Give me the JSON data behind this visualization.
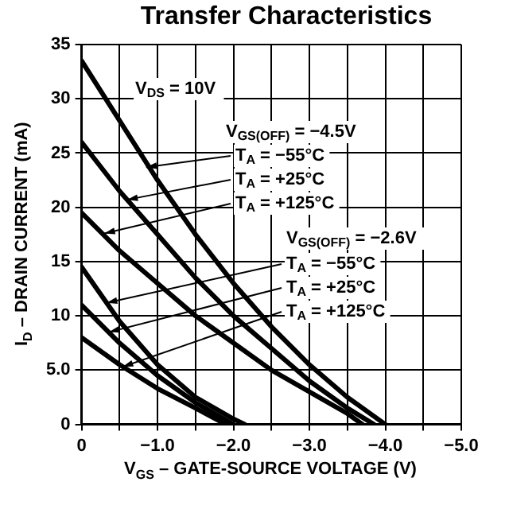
{
  "chart_data": {
    "type": "line",
    "title": "Transfer Characteristics",
    "xlabel": "V$_{GS}$ – GATE-SOURCE VOLTAGE (V)",
    "ylabel": "I$_{D}$ – DRAIN CURRENT (mA)",
    "xlim": [
      0,
      -5
    ],
    "xticks": [
      0,
      {
        "value": -0.5,
        "label": null
      },
      {
        "value": -1,
        "label": "−1.0"
      },
      {
        "value": -1.5,
        "label": null
      },
      {
        "value": -2,
        "label": "−2.0"
      },
      {
        "value": -2.5,
        "label": null
      },
      {
        "value": -3,
        "label": "−3.0"
      },
      {
        "value": -3.5,
        "label": null
      },
      {
        "value": -4,
        "label": "−4.0"
      },
      {
        "value": -4.5,
        "label": null
      },
      {
        "value": -5,
        "label": "−5.0"
      }
    ],
    "ylim": [
      0,
      35
    ],
    "yticks": [
      0,
      {
        "value": 5,
        "label": "5.0"
      },
      10,
      15,
      20,
      25,
      30,
      35
    ],
    "grid": true,
    "legend": false,
    "marker": "none",
    "line_style": "solid",
    "series": [
      {
        "color": "#000000",
        "x": [
          0,
          -0.5,
          -1,
          -1.5,
          -2,
          -2.5,
          -3,
          -3.5,
          -4
        ],
        "values": [
          33.5,
          28,
          22.5,
          17.5,
          13,
          9,
          5.5,
          2.5,
          0
        ]
      },
      {
        "color": "#000000",
        "x": [
          0,
          -0.5,
          -1,
          -1.5,
          -2,
          -2.5,
          -3,
          -3.5,
          -3.85
        ],
        "values": [
          26,
          21.5,
          17.5,
          13.5,
          10,
          7,
          4,
          1.5,
          0
        ]
      },
      {
        "color": "#000000",
        "x": [
          0,
          -0.5,
          -1,
          -1.5,
          -2,
          -2.5,
          -3,
          -3.5,
          -3.7
        ],
        "values": [
          19.5,
          16,
          13,
          10,
          7.5,
          5,
          3,
          1,
          0
        ]
      },
      {
        "color": "#000000",
        "x": [
          0,
          -0.5,
          -1,
          -1.5,
          -2,
          -2.15
        ],
        "values": [
          14.5,
          9.5,
          5.5,
          2.5,
          0.5,
          0
        ]
      },
      {
        "color": "#000000",
        "x": [
          0,
          -0.5,
          -1,
          -1.5,
          -2
        ],
        "values": [
          11,
          7.5,
          4.5,
          2,
          0
        ]
      },
      {
        "color": "#000000",
        "x": [
          0,
          -0.5,
          -1,
          -1.5,
          -1.9
        ],
        "values": [
          8,
          5.5,
          3.3,
          1.5,
          0
        ]
      }
    ],
    "annotations": [
      "V$_{DS}$ = 10V",
      "V$_{GS(OFF)}$ = −4.5V",
      {
        "text": "T$_{A}$ = −55°C",
        "x": -0.85,
        "y": 23.7
      },
      {
        "text": "T$_{A}$ = +25°C",
        "x": -0.6,
        "y": 20.7
      },
      {
        "text": "T$_{A}$ = +125°C",
        "x": -0.3,
        "y": 17.6
      },
      "V$_{GS(OFF)}$ = −2.6V",
      {
        "text": "T$_{A}$ = −55°C",
        "x": -0.33,
        "y": 11.2
      },
      {
        "text": "T$_{A}$ = +25°C",
        "x": -0.36,
        "y": 8.5
      },
      {
        "text": "T$_{A}$ = +125°C",
        "x": -0.54,
        "y": 5.3
      }
    ]
  }
}
